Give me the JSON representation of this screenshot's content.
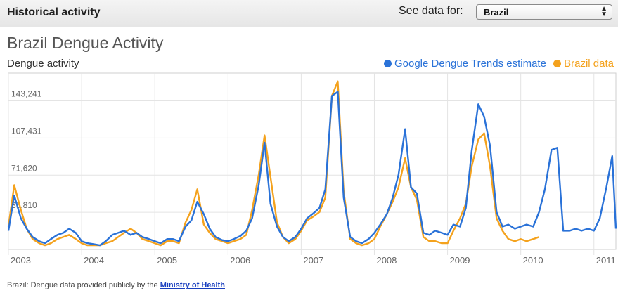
{
  "header": {
    "title": "Historical activity",
    "see_data_label": "See data for:",
    "country_select": "Brazil"
  },
  "footnote": {
    "prefix": "Brazil: Dengue data provided publicly by the",
    "link": "Ministry of Health",
    "suffix": "."
  },
  "chart_data": {
    "type": "line",
    "title": "Brazil Dengue Activity",
    "ylabel": "Dengue activity",
    "xlabel": "",
    "y_ticks": [
      "35,810",
      "71,620",
      "107,431",
      "143,241"
    ],
    "y_tick_values": [
      35810,
      71620,
      107431,
      143241
    ],
    "x_ticks": [
      "2003",
      "2004",
      "2005",
      "2006",
      "2007",
      "2008",
      "2009",
      "2010",
      "2011"
    ],
    "x_tick_values": [
      2003,
      2004,
      2005,
      2006,
      2007,
      2008,
      2009,
      2010,
      2011
    ],
    "xlim": [
      2003,
      2011.3
    ],
    "ylim": [
      0,
      170000
    ],
    "grid": true,
    "legend_position": "top-right",
    "series": [
      {
        "name": "Google Dengue Trends estimate",
        "color": "#2a72d8",
        "x": [
          2003.0,
          2003.08,
          2003.17,
          2003.25,
          2003.33,
          2003.42,
          2003.5,
          2003.58,
          2003.67,
          2003.75,
          2003.83,
          2003.92,
          2004.0,
          2004.08,
          2004.17,
          2004.25,
          2004.33,
          2004.42,
          2004.5,
          2004.58,
          2004.67,
          2004.75,
          2004.83,
          2004.92,
          2005.0,
          2005.08,
          2005.17,
          2005.25,
          2005.33,
          2005.42,
          2005.5,
          2005.58,
          2005.67,
          2005.75,
          2005.83,
          2005.92,
          2006.0,
          2006.08,
          2006.17,
          2006.25,
          2006.33,
          2006.42,
          2006.5,
          2006.58,
          2006.67,
          2006.75,
          2006.83,
          2006.92,
          2007.0,
          2007.08,
          2007.17,
          2007.25,
          2007.33,
          2007.42,
          2007.5,
          2007.58,
          2007.67,
          2007.75,
          2007.83,
          2007.92,
          2008.0,
          2008.08,
          2008.17,
          2008.25,
          2008.33,
          2008.42,
          2008.5,
          2008.58,
          2008.67,
          2008.75,
          2008.83,
          2008.92,
          2009.0,
          2009.08,
          2009.17,
          2009.25,
          2009.33,
          2009.42,
          2009.5,
          2009.58,
          2009.67,
          2009.75,
          2009.83,
          2009.92,
          2010.0,
          2010.08,
          2010.17,
          2010.25,
          2010.33,
          2010.42,
          2010.5,
          2010.58,
          2010.67,
          2010.75,
          2010.83,
          2010.92,
          2011.0,
          2011.08,
          2011.17,
          2011.25,
          2011.3
        ],
        "values": [
          18000,
          52000,
          30000,
          20000,
          12000,
          8000,
          6000,
          10000,
          14000,
          16000,
          20000,
          16000,
          8000,
          6000,
          5000,
          4000,
          8000,
          14000,
          16000,
          18000,
          14000,
          16000,
          12000,
          10000,
          8000,
          6000,
          10000,
          10000,
          8000,
          22000,
          28000,
          46000,
          34000,
          20000,
          12000,
          9000,
          8000,
          10000,
          13000,
          18000,
          30000,
          62000,
          103000,
          44000,
          22000,
          12000,
          8000,
          12000,
          20000,
          30000,
          35000,
          40000,
          58000,
          148000,
          152000,
          50000,
          12000,
          8000,
          6000,
          10000,
          16000,
          24000,
          34000,
          50000,
          72000,
          116000,
          60000,
          54000,
          16000,
          14000,
          18000,
          16000,
          14000,
          24000,
          22000,
          40000,
          95000,
          140000,
          128000,
          100000,
          36000,
          22000,
          24000,
          20000,
          22000,
          24000,
          22000,
          36000,
          58000,
          96000,
          98000,
          18000,
          18000,
          20000,
          18000,
          20000,
          18000,
          30000,
          60000,
          90000,
          20000
        ]
      },
      {
        "name": "Brazil data",
        "color": "#f4a21d",
        "x": [
          2003.0,
          2003.08,
          2003.17,
          2003.25,
          2003.33,
          2003.42,
          2003.5,
          2003.58,
          2003.67,
          2003.75,
          2003.83,
          2003.92,
          2004.0,
          2004.08,
          2004.17,
          2004.25,
          2004.33,
          2004.42,
          2004.5,
          2004.58,
          2004.67,
          2004.75,
          2004.83,
          2004.92,
          2005.0,
          2005.08,
          2005.17,
          2005.25,
          2005.33,
          2005.42,
          2005.5,
          2005.58,
          2005.67,
          2005.75,
          2005.83,
          2005.92,
          2006.0,
          2006.08,
          2006.17,
          2006.25,
          2006.33,
          2006.42,
          2006.5,
          2006.58,
          2006.67,
          2006.75,
          2006.83,
          2006.92,
          2007.0,
          2007.08,
          2007.17,
          2007.25,
          2007.33,
          2007.42,
          2007.5,
          2007.58,
          2007.67,
          2007.75,
          2007.83,
          2007.92,
          2008.0,
          2008.08,
          2008.17,
          2008.25,
          2008.33,
          2008.42,
          2008.5,
          2008.58,
          2008.67,
          2008.75,
          2008.83,
          2008.92,
          2009.0,
          2009.08,
          2009.17,
          2009.25,
          2009.33,
          2009.42,
          2009.5,
          2009.58,
          2009.67,
          2009.75,
          2009.83,
          2009.92,
          2010.0,
          2010.08,
          2010.17,
          2010.25
        ],
        "values": [
          22000,
          62000,
          38000,
          20000,
          10000,
          6000,
          4000,
          6000,
          10000,
          12000,
          14000,
          10000,
          6000,
          4000,
          4000,
          4000,
          6000,
          8000,
          12000,
          16000,
          20000,
          16000,
          10000,
          8000,
          6000,
          4000,
          8000,
          8000,
          6000,
          26000,
          38000,
          58000,
          24000,
          16000,
          10000,
          8000,
          6000,
          8000,
          10000,
          14000,
          38000,
          72000,
          110000,
          70000,
          26000,
          12000,
          6000,
          10000,
          18000,
          28000,
          32000,
          36000,
          50000,
          148000,
          162000,
          56000,
          10000,
          6000,
          4000,
          6000,
          10000,
          22000,
          34000,
          46000,
          60000,
          88000,
          60000,
          48000,
          12000,
          8000,
          8000,
          6000,
          6000,
          18000,
          30000,
          44000,
          80000,
          106000,
          112000,
          80000,
          30000,
          18000,
          10000,
          8000,
          10000,
          8000,
          10000,
          12000
        ]
      }
    ]
  }
}
